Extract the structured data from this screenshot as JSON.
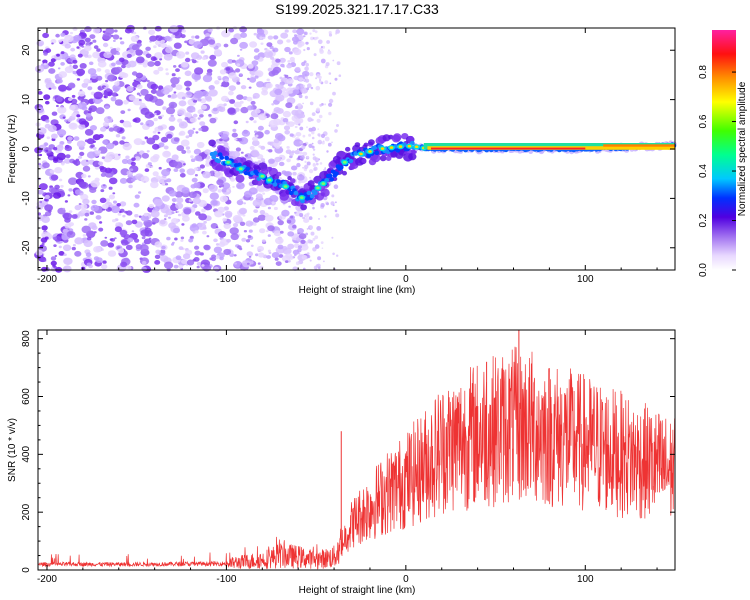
{
  "title": "S199.2025.321.17.17.C33",
  "chart_data": [
    {
      "type": "heatmap",
      "name": "spectrogram",
      "xlabel": "Height of straight line (km)",
      "ylabel": "Frequency (Hz)",
      "xlim": [
        -205,
        150
      ],
      "ylim": [
        -24.5,
        24.5
      ],
      "xticks": [
        -200,
        -100,
        0,
        100
      ],
      "yticks": [
        -20,
        -10,
        0,
        10,
        20
      ],
      "ridge": {
        "x": [
          -108,
          -100,
          -92,
          -85,
          -80,
          -75,
          -70,
          -65,
          -60,
          -57,
          -52,
          -48,
          -44,
          -40,
          -35,
          -30,
          -25,
          -20,
          -15,
          -10,
          -5,
          0,
          5,
          10,
          30,
          60,
          100,
          130,
          150
        ],
        "y": [
          -1,
          -2.5,
          -4,
          -5,
          -5.5,
          -6.5,
          -7,
          -8,
          -9.5,
          -10,
          -9,
          -7.5,
          -6.5,
          -5,
          -3,
          -1.5,
          -1,
          -0.5,
          0,
          0.2,
          0.4,
          0.6,
          0.5,
          0.2,
          0,
          0,
          0,
          0.4,
          0.8
        ]
      },
      "colorbar": {
        "label": "Normalized spectral amplitude",
        "ticks": [
          "0.0",
          "0.2",
          "0.4",
          "0.6",
          "0.8"
        ],
        "range": [
          0,
          0.97
        ]
      }
    },
    {
      "type": "line",
      "name": "snr",
      "xlabel": "Height of straight line (km)",
      "ylabel": "SNR (10 * v/v)",
      "xlim": [
        -205,
        150
      ],
      "ylim": [
        0,
        830
      ],
      "xticks": [
        -200,
        -100,
        0,
        100
      ],
      "yticks": [
        0,
        200,
        400,
        600,
        800
      ],
      "color": "#ee3333",
      "envelope": {
        "x": [
          -205,
          -150,
          -100,
          -80,
          -70,
          -60,
          -50,
          -40,
          -36,
          -30,
          -20,
          -10,
          0,
          10,
          20,
          40,
          60,
          70,
          80,
          100,
          120,
          140,
          150
        ],
        "y": [
          20,
          20,
          22,
          35,
          50,
          45,
          35,
          45,
          90,
          160,
          220,
          270,
          310,
          360,
          420,
          470,
          500,
          495,
          470,
          440,
          400,
          360,
          340
        ]
      },
      "spikes": [
        {
          "x": -36,
          "y": 480
        },
        {
          "x": 63,
          "y": 830
        },
        {
          "x": 45,
          "y": 720
        }
      ]
    }
  ]
}
